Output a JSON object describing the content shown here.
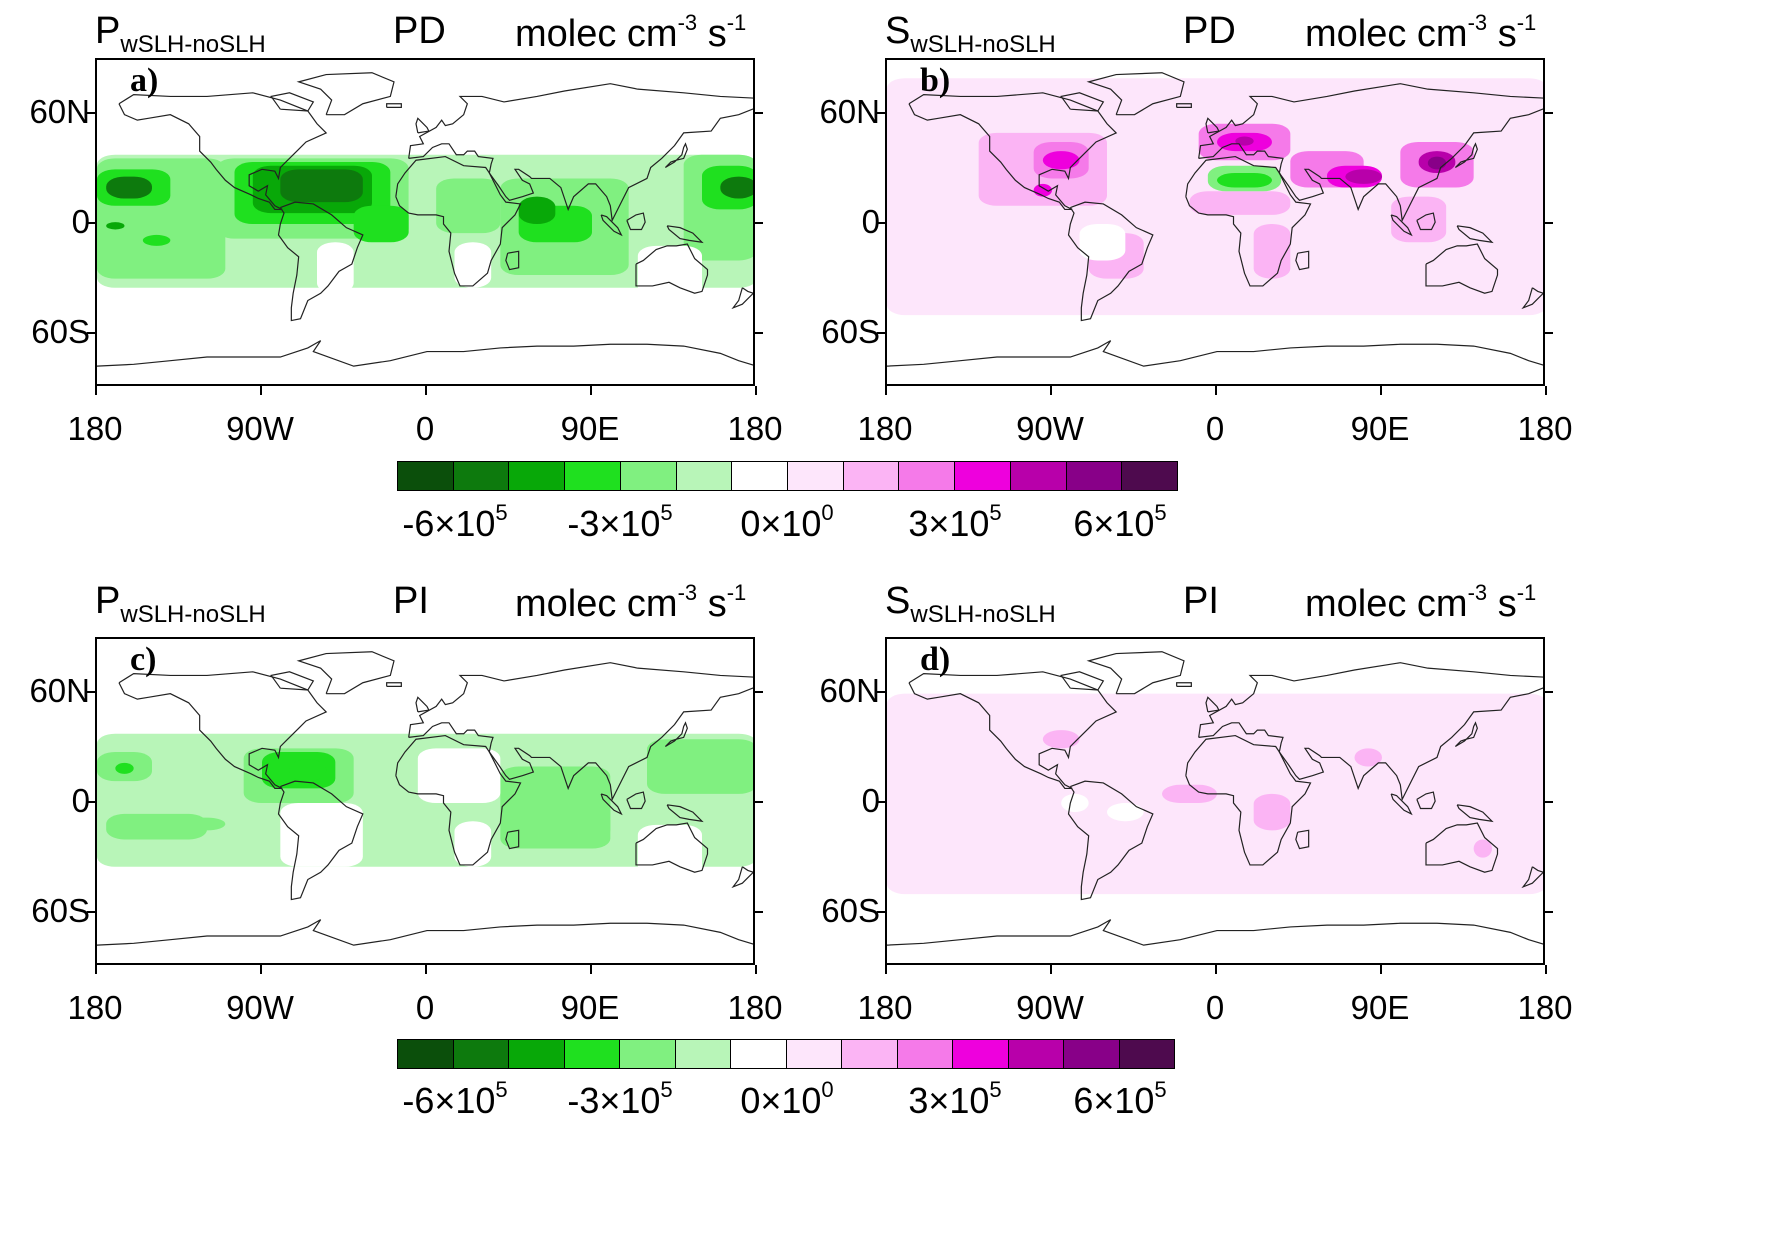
{
  "figure": {
    "panels": [
      {
        "id": "a",
        "letter": "a)",
        "variable": "P",
        "subscript": "wSLH-noSLH",
        "period": "PD",
        "units_main": "molec cm",
        "units_exp1": "-3",
        "units_s": " s",
        "units_exp2": "-1",
        "palette": "green",
        "pattern": "pd_green"
      },
      {
        "id": "b",
        "letter": "b)",
        "variable": "S",
        "subscript": "wSLH-noSLH",
        "period": "PD",
        "units_main": "molec cm",
        "units_exp1": "-3",
        "units_s": " s",
        "units_exp2": "-1",
        "palette": "magenta",
        "pattern": "pd_magenta"
      },
      {
        "id": "c",
        "letter": "c)",
        "variable": "P",
        "subscript": "wSLH-noSLH",
        "period": "PI",
        "units_main": "molec cm",
        "units_exp1": "-3",
        "units_s": " s",
        "units_exp2": "-1",
        "palette": "green",
        "pattern": "pi_green"
      },
      {
        "id": "d",
        "letter": "d)",
        "variable": "S",
        "subscript": "wSLH-noSLH",
        "period": "PI",
        "units_main": "molec cm",
        "units_exp1": "-3",
        "units_s": " s",
        "units_exp2": "-1",
        "palette": "magenta",
        "pattern": "pi_magenta"
      }
    ],
    "lat_labels": [
      "60N",
      "0",
      "60S"
    ],
    "lon_labels": [
      "180",
      "90W",
      "0",
      "90E",
      "180"
    ],
    "colorbar": {
      "colors": [
        "#0b4f0b",
        "#0d7a0d",
        "#08a808",
        "#1fe01f",
        "#80f080",
        "#b8f5b8",
        "#ffffff",
        "#fde6fb",
        "#fbb4f4",
        "#f57ae9",
        "#ee00dd",
        "#b800aa",
        "#880088",
        "#4e0a4e"
      ],
      "labels": [
        {
          "base": "-6×10",
          "exp": "5"
        },
        {
          "base": "-3×10",
          "exp": "5"
        },
        {
          "base": "0×10",
          "exp": "0"
        },
        {
          "base": "3×10",
          "exp": "5"
        },
        {
          "base": "6×10",
          "exp": "5"
        }
      ]
    }
  }
}
